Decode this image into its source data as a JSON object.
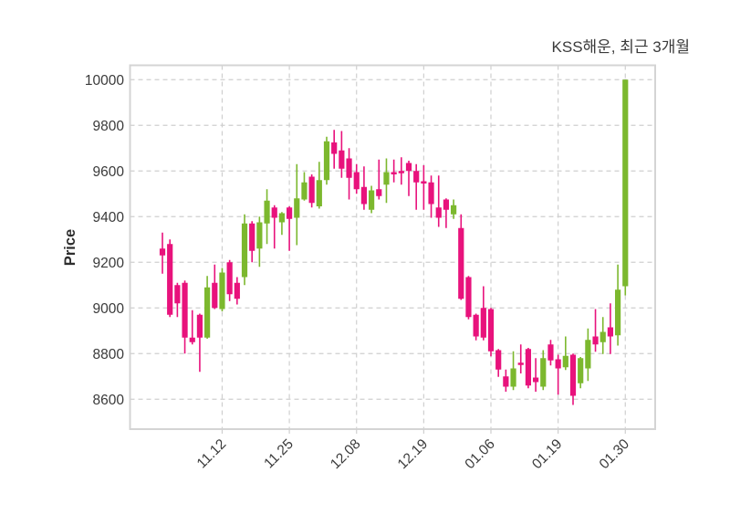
{
  "title": "KSS해운, 최근 3개월",
  "chart_data": {
    "type": "candlestick",
    "symbol": "KSS해운",
    "period_label": "최근 3개월",
    "title": "KSS해운, 최근 3개월",
    "xlabel": "",
    "ylabel": "Price",
    "grid": "dashed",
    "legend": "none",
    "y_ticks": [
      8600,
      8800,
      9000,
      9200,
      9400,
      9600,
      9800,
      10000
    ],
    "ylim": [
      8469,
      10063
    ],
    "x_tick_labels": [
      "11.12",
      "11.25",
      "12.08",
      "12.19",
      "01.06",
      "01.19",
      "01.30"
    ],
    "x_tick_indices": [
      8,
      17,
      26,
      35,
      44,
      53,
      62
    ],
    "xlim_index": [
      -4.34,
      66.0
    ],
    "colors": {
      "up": "#7CB82E",
      "down": "#E8127C",
      "grid": "#cfcfcf",
      "border": "#d4d4d4",
      "text": "#3a3a3a",
      "background": "#ffffff"
    },
    "candles_format": [
      "open",
      "high",
      "low",
      "close"
    ],
    "candles": [
      [
        9260,
        9330,
        9150,
        9230
      ],
      [
        9280,
        9300,
        8960,
        8970
      ],
      [
        9100,
        9110,
        8960,
        9020
      ],
      [
        9110,
        9120,
        8800,
        8870
      ],
      [
        8870,
        8990,
        8840,
        8850
      ],
      [
        8970,
        8975,
        8720,
        8870
      ],
      [
        8870,
        9140,
        8865,
        9090
      ],
      [
        9110,
        9190,
        8995,
        9000
      ],
      [
        8995,
        9175,
        8985,
        9155
      ],
      [
        9200,
        9210,
        9030,
        9060
      ],
      [
        9110,
        9135,
        9015,
        9040
      ],
      [
        9135,
        9410,
        9100,
        9370
      ],
      [
        9370,
        9380,
        9200,
        9250
      ],
      [
        9260,
        9400,
        9180,
        9375
      ],
      [
        9370,
        9520,
        9280,
        9470
      ],
      [
        9440,
        9450,
        9260,
        9395
      ],
      [
        9375,
        9420,
        9320,
        9415
      ],
      [
        9440,
        9445,
        9250,
        9390
      ],
      [
        9395,
        9630,
        9275,
        9480
      ],
      [
        9475,
        9595,
        9470,
        9550
      ],
      [
        9575,
        9585,
        9440,
        9460
      ],
      [
        9445,
        9640,
        9435,
        9560
      ],
      [
        9560,
        9750,
        9540,
        9730
      ],
      [
        9725,
        9780,
        9610,
        9675
      ],
      [
        9690,
        9775,
        9570,
        9610
      ],
      [
        9655,
        9700,
        9475,
        9570
      ],
      [
        9595,
        9630,
        9500,
        9520
      ],
      [
        9530,
        9620,
        9430,
        9455
      ],
      [
        9430,
        9535,
        9415,
        9515
      ],
      [
        9520,
        9650,
        9475,
        9490
      ],
      [
        9540,
        9655,
        9460,
        9595
      ],
      [
        9595,
        9650,
        9550,
        9585
      ],
      [
        9600,
        9660,
        9540,
        9590
      ],
      [
        9635,
        9645,
        9490,
        9600
      ],
      [
        9600,
        9630,
        9430,
        9550
      ],
      [
        9555,
        9625,
        9430,
        9545
      ],
      [
        9550,
        9580,
        9395,
        9455
      ],
      [
        9440,
        9580,
        9355,
        9395
      ],
      [
        9475,
        9480,
        9350,
        9430
      ],
      [
        9410,
        9475,
        9390,
        9450
      ],
      [
        9350,
        9410,
        9035,
        9040
      ],
      [
        9135,
        9140,
        8950,
        8960
      ],
      [
        8970,
        8975,
        8858,
        8875
      ],
      [
        9000,
        9095,
        8858,
        8870
      ],
      [
        8995,
        9000,
        8788,
        8810
      ],
      [
        8815,
        8820,
        8698,
        8730
      ],
      [
        8700,
        8730,
        8633,
        8655
      ],
      [
        8655,
        8810,
        8640,
        8735
      ],
      [
        8760,
        8840,
        8713,
        8750
      ],
      [
        8820,
        8825,
        8648,
        8660
      ],
      [
        8695,
        8780,
        8633,
        8675
      ],
      [
        8655,
        8815,
        8640,
        8780
      ],
      [
        8840,
        8860,
        8748,
        8770
      ],
      [
        8775,
        8795,
        8620,
        8735
      ],
      [
        8740,
        8875,
        8728,
        8790
      ],
      [
        8795,
        8800,
        8575,
        8615
      ],
      [
        8670,
        8785,
        8648,
        8780
      ],
      [
        8735,
        8910,
        8680,
        8860
      ],
      [
        8875,
        8995,
        8808,
        8840
      ],
      [
        8850,
        8960,
        8798,
        8895
      ],
      [
        8915,
        9020,
        8798,
        8875
      ],
      [
        8880,
        9190,
        8835,
        9080
      ],
      [
        9095,
        10000,
        9055,
        10000
      ]
    ]
  }
}
